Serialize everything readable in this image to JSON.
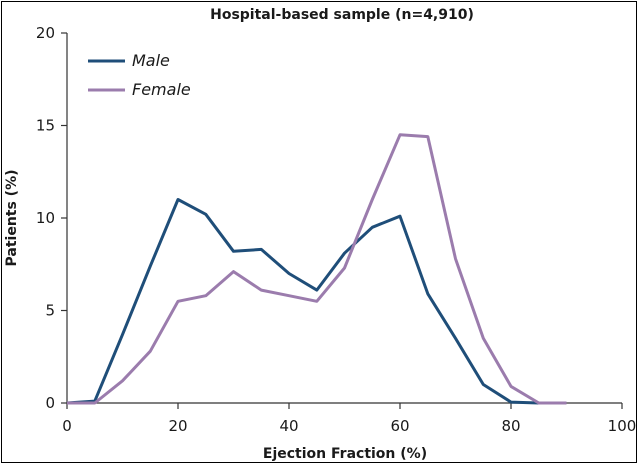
{
  "chart_data": {
    "type": "line",
    "title": "Hospital-based sample (n=4,910)",
    "xlabel": "Ejection Fraction (%)",
    "ylabel": "Patients (%)",
    "xlim": [
      0,
      100
    ],
    "ylim": [
      0,
      20
    ],
    "x_ticks": [
      "0",
      "20",
      "40",
      "60",
      "80",
      "100"
    ],
    "y_ticks": [
      "0",
      "5",
      "10",
      "15",
      "20"
    ],
    "grid": false,
    "legend_position": "top-left",
    "series": [
      {
        "name": "Male",
        "color": "#1f4e79",
        "points": [
          [
            0,
            0
          ],
          [
            5,
            0.1
          ],
          [
            10,
            3.7
          ],
          [
            15,
            7.4
          ],
          [
            20,
            11.0
          ],
          [
            25,
            10.2
          ],
          [
            30,
            8.2
          ],
          [
            35,
            8.3
          ],
          [
            40,
            7.0
          ],
          [
            45,
            6.1
          ],
          [
            50,
            8.1
          ],
          [
            55,
            9.5
          ],
          [
            60,
            10.1
          ],
          [
            65,
            5.9
          ],
          [
            70,
            3.5
          ],
          [
            75,
            1.0
          ],
          [
            80,
            0.05
          ],
          [
            85,
            0
          ]
        ]
      },
      {
        "name": "Female",
        "color": "#9b7cad",
        "points": [
          [
            0,
            0
          ],
          [
            5,
            0
          ],
          [
            10,
            1.2
          ],
          [
            15,
            2.8
          ],
          [
            20,
            5.5
          ],
          [
            25,
            5.8
          ],
          [
            30,
            7.1
          ],
          [
            35,
            6.1
          ],
          [
            40,
            5.8
          ],
          [
            45,
            5.5
          ],
          [
            50,
            7.3
          ],
          [
            55,
            11.0
          ],
          [
            60,
            14.5
          ],
          [
            65,
            14.4
          ],
          [
            70,
            7.8
          ],
          [
            75,
            3.5
          ],
          [
            80,
            0.9
          ],
          [
            85,
            0
          ],
          [
            90,
            0
          ]
        ]
      }
    ]
  }
}
